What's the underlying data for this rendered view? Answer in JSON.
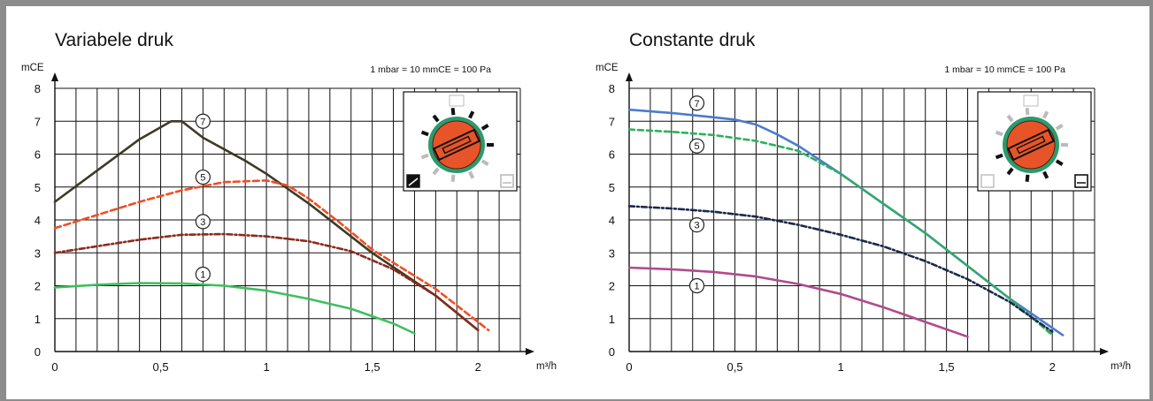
{
  "chart_data": [
    {
      "type": "line",
      "title": "Variabele druk",
      "ylabel": "mCE",
      "xlabel": "m³/h",
      "note": "1 mbar = 10 mmCE = 100 Pa",
      "xlim": [
        0,
        2.2
      ],
      "ylim": [
        0,
        8
      ],
      "x_ticks": [
        "0",
        "0,5",
        "1",
        "1,5",
        "2"
      ],
      "y_ticks": [
        "0",
        "1",
        "2",
        "3",
        "4",
        "5",
        "6",
        "7",
        "8"
      ],
      "grid": true,
      "series": [
        {
          "name": "7",
          "color": "#3d3a26",
          "dash": "solid",
          "x": [
            0,
            0.2,
            0.4,
            0.55,
            0.6,
            0.7,
            0.9,
            1.0,
            1.2,
            1.5,
            1.8,
            2.0
          ],
          "y": [
            4.55,
            5.5,
            6.45,
            7.0,
            7.0,
            6.5,
            5.8,
            5.4,
            4.5,
            3.0,
            1.7,
            0.65
          ]
        },
        {
          "name": "5",
          "color": "#f04e23",
          "dash": "7,4",
          "x": [
            0,
            0.2,
            0.4,
            0.6,
            0.8,
            1.0,
            1.1,
            1.2,
            1.35,
            1.5,
            1.8,
            2.05
          ],
          "y": [
            3.75,
            4.15,
            4.55,
            4.9,
            5.15,
            5.2,
            5.05,
            4.65,
            3.9,
            3.1,
            1.9,
            0.65
          ]
        },
        {
          "name": "3",
          "color": "#8b2a1e",
          "dash": "6,3,2,3",
          "x": [
            0,
            0.2,
            0.4,
            0.6,
            0.8,
            1.0,
            1.2,
            1.4,
            1.6,
            1.8,
            2.0
          ],
          "y": [
            3.0,
            3.2,
            3.4,
            3.55,
            3.57,
            3.5,
            3.35,
            3.05,
            2.5,
            1.7,
            0.65
          ]
        },
        {
          "name": "1",
          "color": "#3fbf5f",
          "dash": "solid",
          "x": [
            0,
            0.2,
            0.4,
            0.6,
            0.8,
            1.0,
            1.2,
            1.4,
            1.6,
            1.7
          ],
          "y": [
            1.95,
            2.03,
            2.08,
            2.07,
            2.0,
            1.85,
            1.6,
            1.3,
            0.85,
            0.55
          ]
        }
      ],
      "curve_labels": [
        {
          "text": "7",
          "x": 0.7,
          "y": 7.0
        },
        {
          "text": "5",
          "x": 0.7,
          "y": 5.3
        },
        {
          "text": "3",
          "x": 0.7,
          "y": 3.95
        },
        {
          "text": "1",
          "x": 0.7,
          "y": 2.35
        }
      ],
      "selector": {
        "mode": "variable"
      }
    },
    {
      "type": "line",
      "title": "Constante druk",
      "ylabel": "mCE",
      "xlabel": "m³/h",
      "note": "1 mbar = 10 mmCE = 100 Pa",
      "xlim": [
        0,
        2.2
      ],
      "ylim": [
        0,
        8
      ],
      "x_ticks": [
        "0",
        "0,5",
        "1",
        "1,5",
        "2"
      ],
      "y_ticks": [
        "0",
        "1",
        "2",
        "3",
        "4",
        "5",
        "6",
        "7",
        "8"
      ],
      "grid": true,
      "series": [
        {
          "name": "7",
          "color": "#4b7bcf",
          "dash": "solid",
          "x": [
            0,
            0.2,
            0.4,
            0.5,
            0.6,
            0.7,
            0.8,
            1.0,
            1.2,
            1.4,
            1.6,
            1.8,
            2.05
          ],
          "y": [
            7.35,
            7.25,
            7.12,
            7.05,
            6.9,
            6.6,
            6.25,
            5.4,
            4.5,
            3.6,
            2.6,
            1.6,
            0.5
          ]
        },
        {
          "name": "5",
          "color": "#2eb05a",
          "dash": "6,4",
          "x": [
            0,
            0.2,
            0.4,
            0.6,
            0.8,
            1.0,
            1.2,
            1.4,
            1.6,
            1.8,
            2.0
          ],
          "y": [
            6.75,
            6.68,
            6.58,
            6.4,
            6.1,
            5.4,
            4.5,
            3.6,
            2.6,
            1.6,
            0.5
          ]
        },
        {
          "name": "3",
          "color": "#1b2a4a",
          "dash": "6,3,2,3",
          "x": [
            0,
            0.2,
            0.4,
            0.6,
            0.8,
            1.0,
            1.2,
            1.4,
            1.6,
            1.8,
            2.0
          ],
          "y": [
            4.42,
            4.35,
            4.25,
            4.1,
            3.85,
            3.55,
            3.2,
            2.75,
            2.2,
            1.5,
            0.6
          ]
        },
        {
          "name": "1",
          "color": "#b14a8e",
          "dash": "solid",
          "x": [
            0,
            0.2,
            0.4,
            0.6,
            0.8,
            1.0,
            1.2,
            1.4,
            1.6
          ],
          "y": [
            2.55,
            2.5,
            2.42,
            2.28,
            2.05,
            1.75,
            1.35,
            0.9,
            0.45
          ]
        }
      ],
      "curve_labels": [
        {
          "text": "7",
          "x": 0.32,
          "y": 7.55
        },
        {
          "text": "5",
          "x": 0.32,
          "y": 6.25
        },
        {
          "text": "3",
          "x": 0.32,
          "y": 3.85
        },
        {
          "text": "1",
          "x": 0.32,
          "y": 2.0
        }
      ],
      "selector": {
        "mode": "constant"
      }
    }
  ]
}
